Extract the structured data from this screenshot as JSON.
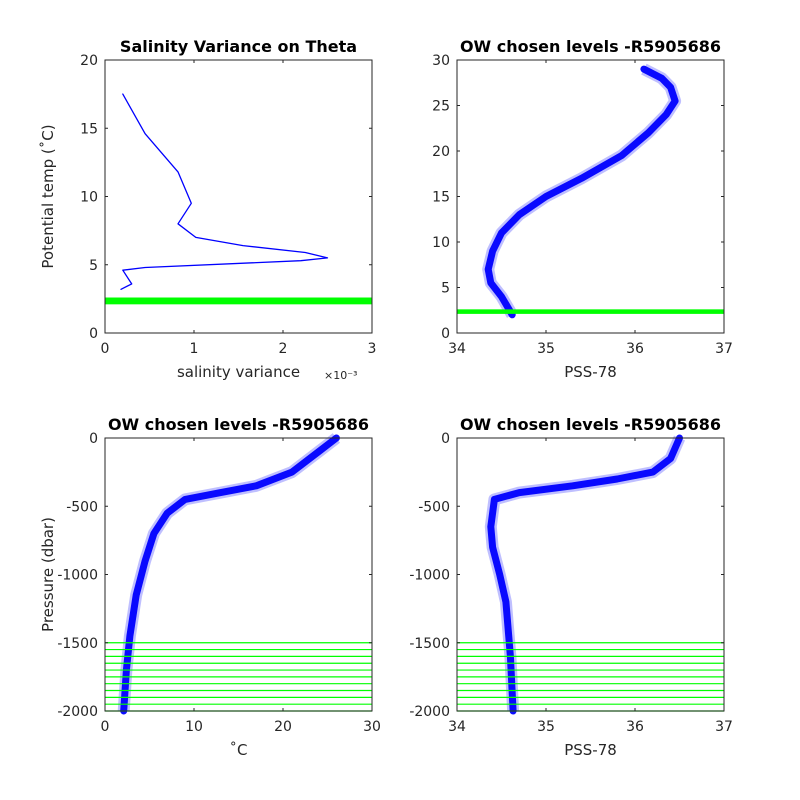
{
  "chart_data": [
    {
      "id": "p1",
      "type": "line",
      "title": "Salinity Variance on Theta",
      "xlabel": "salinity variance",
      "xlabel_exponent": "×10⁻³",
      "ylabel": "Potential temp (˚C)",
      "xlim": [
        0,
        3
      ],
      "ylim": [
        0,
        20
      ],
      "xticks": [
        0,
        1,
        2,
        3
      ],
      "xtick_labels": [
        "0",
        "1",
        "2",
        "3"
      ],
      "yticks": [
        0,
        5,
        10,
        15,
        20
      ],
      "ytick_labels": [
        "0",
        "5",
        "10",
        "15",
        "20"
      ],
      "series": [
        {
          "color": "#0000ff",
          "x": [
            0.2,
            0.45,
            0.82,
            0.97,
            0.82,
            1.02,
            1.55,
            2.25,
            2.5,
            2.2,
            0.45,
            0.2,
            0.3,
            0.18
          ],
          "y": [
            17.5,
            14.6,
            11.8,
            9.5,
            8.0,
            7.0,
            6.4,
            5.9,
            5.5,
            5.3,
            4.8,
            4.6,
            3.6,
            3.2
          ]
        }
      ],
      "hbands": [
        {
          "y_from": 2.1,
          "y_to": 2.6,
          "color": "#00ff00"
        }
      ]
    },
    {
      "id": "p2",
      "type": "line",
      "title": "OW chosen levels -R5905686",
      "xlabel": "PSS-78",
      "ylabel": "",
      "xlim": [
        34,
        37
      ],
      "ylim": [
        0,
        30
      ],
      "xticks": [
        34,
        35,
        36,
        37
      ],
      "xtick_labels": [
        "34",
        "35",
        "36",
        "37"
      ],
      "yticks": [
        0,
        5,
        10,
        15,
        20,
        25,
        30
      ],
      "ytick_labels": [
        "0",
        "5",
        "10",
        "15",
        "20",
        "25",
        "30"
      ],
      "series": [
        {
          "color": "#0000ff",
          "x": [
            34.62,
            34.5,
            34.38,
            34.35,
            34.4,
            34.5,
            34.7,
            35.0,
            35.4,
            35.85,
            36.15,
            36.35,
            36.45,
            36.4,
            36.3,
            36.1
          ],
          "y": [
            2.0,
            4.0,
            5.5,
            7.0,
            9.0,
            11.0,
            13.0,
            15.0,
            17.0,
            19.5,
            22.0,
            24.0,
            25.5,
            27.0,
            28.0,
            29.0
          ]
        }
      ],
      "hbands": [
        {
          "y_from": 2.1,
          "y_to": 2.6,
          "color": "#00ff00"
        }
      ]
    },
    {
      "id": "p3",
      "type": "line",
      "title": "OW chosen levels -R5905686",
      "xlabel": "˚C",
      "ylabel": "Pressure (dbar)",
      "xlim": [
        0,
        30
      ],
      "ylim": [
        -2000,
        0
      ],
      "xticks": [
        0,
        10,
        20,
        30
      ],
      "xtick_labels": [
        "0",
        "10",
        "20",
        "30"
      ],
      "yticks": [
        -2000,
        -1500,
        -1000,
        -500,
        0
      ],
      "ytick_labels": [
        "-2000",
        "-1500",
        "-1000",
        "-500",
        "0"
      ],
      "series": [
        {
          "color": "#0000ff",
          "x": [
            2.1,
            2.4,
            2.8,
            3.5,
            4.5,
            5.5,
            7.0,
            9.0,
            13.0,
            17.0,
            21.0,
            24.0,
            26.0
          ],
          "y": [
            -2000,
            -1700,
            -1450,
            -1150,
            -900,
            -700,
            -550,
            -450,
            -400,
            -350,
            -250,
            -100,
            0
          ]
        }
      ],
      "hlines": [
        -1500,
        -1550,
        -1600,
        -1650,
        -1700,
        -1750,
        -1800,
        -1850,
        -1900,
        -1950,
        -2000
      ],
      "hline_color": "#00ff00"
    },
    {
      "id": "p4",
      "type": "line",
      "title": "OW chosen levels -R5905686",
      "xlabel": "PSS-78",
      "ylabel": "",
      "xlim": [
        34,
        37
      ],
      "ylim": [
        -2000,
        0
      ],
      "xticks": [
        34,
        35,
        36,
        37
      ],
      "xtick_labels": [
        "34",
        "35",
        "36",
        "37"
      ],
      "yticks": [
        -2000,
        -1500,
        -1000,
        -500,
        0
      ],
      "ytick_labels": [
        "-2000",
        "-1500",
        "-1000",
        "-500",
        "0"
      ],
      "series": [
        {
          "color": "#0000ff",
          "x": [
            34.63,
            34.6,
            34.55,
            34.48,
            34.4,
            34.38,
            34.42,
            34.7,
            35.3,
            35.8,
            36.2,
            36.4,
            36.5
          ],
          "y": [
            -2000,
            -1600,
            -1200,
            -1000,
            -800,
            -650,
            -450,
            -400,
            -350,
            -300,
            -250,
            -150,
            0
          ]
        }
      ],
      "hlines": [
        -1500,
        -1550,
        -1600,
        -1650,
        -1700,
        -1750,
        -1800,
        -1850,
        -1900,
        -1950,
        -2000
      ],
      "hline_color": "#00ff00"
    }
  ]
}
